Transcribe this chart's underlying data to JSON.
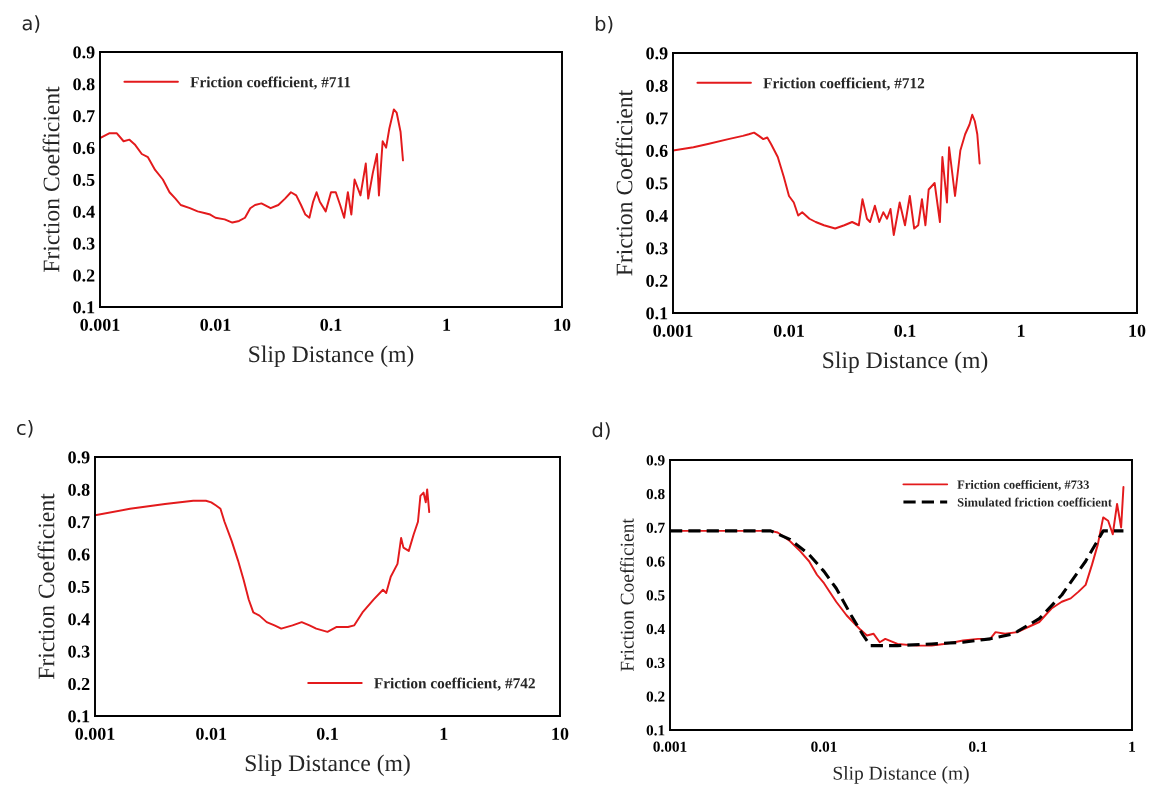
{
  "chart_data": [
    {
      "type": "line",
      "title": "a)",
      "xlabel": "Slip Distance (m)",
      "ylabel": "Friction Coefficient",
      "log": "x",
      "xlim": [
        0.001,
        10
      ],
      "xticks": [
        0.001,
        0.01,
        0.1,
        1,
        10
      ],
      "ylim": [
        0.1,
        0.9
      ],
      "yticks": [
        0.1,
        0.2,
        0.3,
        0.4,
        0.5,
        0.6,
        0.7,
        0.8,
        0.9
      ],
      "grid": false,
      "legend": "top left",
      "marker": "none",
      "series": [
        {
          "name": "Friction coefficient, #711",
          "color": "#e31a1c",
          "line_style": "solid",
          "x": [
            0.001,
            0.0012,
            0.0014,
            0.0016,
            0.0018,
            0.002,
            0.0023,
            0.0026,
            0.003,
            0.0035,
            0.004,
            0.0045,
            0.005,
            0.006,
            0.007,
            0.008,
            0.009,
            0.01,
            0.012,
            0.014,
            0.016,
            0.018,
            0.02,
            0.022,
            0.025,
            0.03,
            0.035,
            0.04,
            0.045,
            0.05,
            0.055,
            0.06,
            0.065,
            0.07,
            0.075,
            0.08,
            0.09,
            0.1,
            0.11,
            0.12,
            0.13,
            0.14,
            0.15,
            0.16,
            0.18,
            0.2,
            0.21,
            0.23,
            0.25,
            0.26,
            0.28,
            0.3,
            0.32,
            0.35,
            0.37,
            0.4,
            0.42
          ],
          "values": [
            0.63,
            0.645,
            0.645,
            0.62,
            0.625,
            0.61,
            0.58,
            0.57,
            0.53,
            0.5,
            0.46,
            0.44,
            0.42,
            0.41,
            0.4,
            0.395,
            0.39,
            0.38,
            0.375,
            0.365,
            0.37,
            0.38,
            0.41,
            0.42,
            0.425,
            0.41,
            0.42,
            0.44,
            0.46,
            0.45,
            0.42,
            0.39,
            0.38,
            0.43,
            0.46,
            0.43,
            0.4,
            0.46,
            0.46,
            0.42,
            0.38,
            0.46,
            0.39,
            0.5,
            0.45,
            0.55,
            0.44,
            0.52,
            0.58,
            0.45,
            0.62,
            0.6,
            0.66,
            0.72,
            0.71,
            0.65,
            0.56
          ]
        }
      ]
    },
    {
      "type": "line",
      "title": "b)",
      "xlabel": "Slip Distance (m)",
      "ylabel": "Friction Coefficient",
      "log": "x",
      "xlim": [
        0.001,
        10
      ],
      "xticks": [
        0.001,
        0.01,
        0.1,
        1,
        10
      ],
      "ylim": [
        0.1,
        0.9
      ],
      "yticks": [
        0.1,
        0.2,
        0.3,
        0.4,
        0.5,
        0.6,
        0.7,
        0.8,
        0.9
      ],
      "grid": false,
      "legend": "top left",
      "marker": "none",
      "series": [
        {
          "name": "Friction coefficient, #712",
          "color": "#e31a1c",
          "line_style": "solid",
          "x": [
            0.001,
            0.0015,
            0.002,
            0.003,
            0.004,
            0.0045,
            0.005,
            0.0055,
            0.006,
            0.0065,
            0.007,
            0.008,
            0.009,
            0.01,
            0.011,
            0.012,
            0.013,
            0.015,
            0.017,
            0.02,
            0.025,
            0.03,
            0.035,
            0.04,
            0.043,
            0.047,
            0.05,
            0.055,
            0.06,
            0.065,
            0.07,
            0.075,
            0.08,
            0.09,
            0.1,
            0.11,
            0.12,
            0.13,
            0.14,
            0.15,
            0.16,
            0.18,
            0.2,
            0.21,
            0.23,
            0.24,
            0.27,
            0.3,
            0.33,
            0.36,
            0.38,
            0.4,
            0.42,
            0.44
          ],
          "values": [
            0.6,
            0.61,
            0.62,
            0.635,
            0.645,
            0.65,
            0.655,
            0.645,
            0.635,
            0.64,
            0.62,
            0.58,
            0.52,
            0.46,
            0.44,
            0.4,
            0.41,
            0.39,
            0.38,
            0.37,
            0.36,
            0.37,
            0.38,
            0.37,
            0.45,
            0.39,
            0.38,
            0.43,
            0.38,
            0.41,
            0.39,
            0.42,
            0.34,
            0.44,
            0.37,
            0.46,
            0.36,
            0.37,
            0.45,
            0.37,
            0.48,
            0.5,
            0.38,
            0.58,
            0.44,
            0.61,
            0.46,
            0.6,
            0.65,
            0.68,
            0.71,
            0.69,
            0.65,
            0.56
          ]
        }
      ]
    },
    {
      "type": "line",
      "title": "c)",
      "xlabel": "Slip Distance (m)",
      "ylabel": "Friction Coefficient",
      "log": "x",
      "xlim": [
        0.001,
        10
      ],
      "xticks": [
        0.001,
        0.01,
        0.1,
        1,
        10
      ],
      "ylim": [
        0.1,
        0.9
      ],
      "yticks": [
        0.1,
        0.2,
        0.3,
        0.4,
        0.5,
        0.6,
        0.7,
        0.8,
        0.9
      ],
      "grid": false,
      "legend": "bottom right",
      "marker": "none",
      "series": [
        {
          "name": "Friction coefficient, #742",
          "color": "#e31a1c",
          "line_style": "solid",
          "x": [
            0.001,
            0.002,
            0.004,
            0.007,
            0.009,
            0.01,
            0.011,
            0.012,
            0.013,
            0.015,
            0.017,
            0.019,
            0.021,
            0.023,
            0.026,
            0.03,
            0.035,
            0.04,
            0.05,
            0.06,
            0.07,
            0.08,
            0.1,
            0.12,
            0.15,
            0.17,
            0.2,
            0.25,
            0.3,
            0.32,
            0.35,
            0.4,
            0.43,
            0.45,
            0.5,
            0.55,
            0.6,
            0.63,
            0.67,
            0.7,
            0.72,
            0.75
          ],
          "values": [
            0.72,
            0.74,
            0.755,
            0.765,
            0.765,
            0.76,
            0.75,
            0.74,
            0.7,
            0.64,
            0.58,
            0.52,
            0.46,
            0.42,
            0.41,
            0.39,
            0.38,
            0.37,
            0.38,
            0.39,
            0.38,
            0.37,
            0.36,
            0.375,
            0.375,
            0.38,
            0.42,
            0.46,
            0.49,
            0.48,
            0.53,
            0.57,
            0.65,
            0.62,
            0.61,
            0.66,
            0.7,
            0.78,
            0.79,
            0.76,
            0.8,
            0.73
          ]
        }
      ]
    },
    {
      "type": "line",
      "title": "d)",
      "xlabel": "Slip Distance (m)",
      "ylabel": "Friction Coefficient",
      "log": "x",
      "xlim": [
        0.001,
        1
      ],
      "xticks": [
        0.001,
        0.01,
        0.1,
        1
      ],
      "ylim": [
        0.1,
        0.9
      ],
      "yticks": [
        0.1,
        0.2,
        0.3,
        0.4,
        0.5,
        0.6,
        0.7,
        0.8,
        0.9
      ],
      "grid": false,
      "legend": "top right",
      "marker": "none",
      "series": [
        {
          "name": "Friction coefficient, #733",
          "color": "#e31a1c",
          "line_style": "solid",
          "x": [
            0.001,
            0.003,
            0.0045,
            0.005,
            0.006,
            0.007,
            0.008,
            0.009,
            0.01,
            0.012,
            0.014,
            0.017,
            0.019,
            0.021,
            0.023,
            0.025,
            0.03,
            0.04,
            0.05,
            0.06,
            0.07,
            0.08,
            0.1,
            0.12,
            0.13,
            0.15,
            0.18,
            0.2,
            0.25,
            0.3,
            0.35,
            0.4,
            0.45,
            0.5,
            0.55,
            0.6,
            0.65,
            0.7,
            0.75,
            0.8,
            0.85,
            0.88
          ],
          "values": [
            0.69,
            0.69,
            0.69,
            0.685,
            0.66,
            0.63,
            0.6,
            0.56,
            0.535,
            0.48,
            0.44,
            0.4,
            0.38,
            0.385,
            0.36,
            0.37,
            0.355,
            0.35,
            0.35,
            0.355,
            0.36,
            0.365,
            0.37,
            0.37,
            0.39,
            0.385,
            0.39,
            0.4,
            0.42,
            0.46,
            0.48,
            0.49,
            0.51,
            0.53,
            0.59,
            0.65,
            0.73,
            0.72,
            0.68,
            0.77,
            0.7,
            0.82
          ]
        },
        {
          "name": "Simulated friction coefficient",
          "color": "#000000",
          "line_style": "dashed",
          "x": [
            0.001,
            0.0045,
            0.006,
            0.008,
            0.01,
            0.012,
            0.015,
            0.018,
            0.02,
            0.03,
            0.05,
            0.08,
            0.12,
            0.17,
            0.25,
            0.35,
            0.5,
            0.65,
            0.88
          ],
          "values": [
            0.69,
            0.69,
            0.665,
            0.62,
            0.57,
            0.52,
            0.44,
            0.38,
            0.35,
            0.35,
            0.355,
            0.36,
            0.37,
            0.385,
            0.43,
            0.5,
            0.6,
            0.69,
            0.69
          ]
        }
      ]
    }
  ]
}
